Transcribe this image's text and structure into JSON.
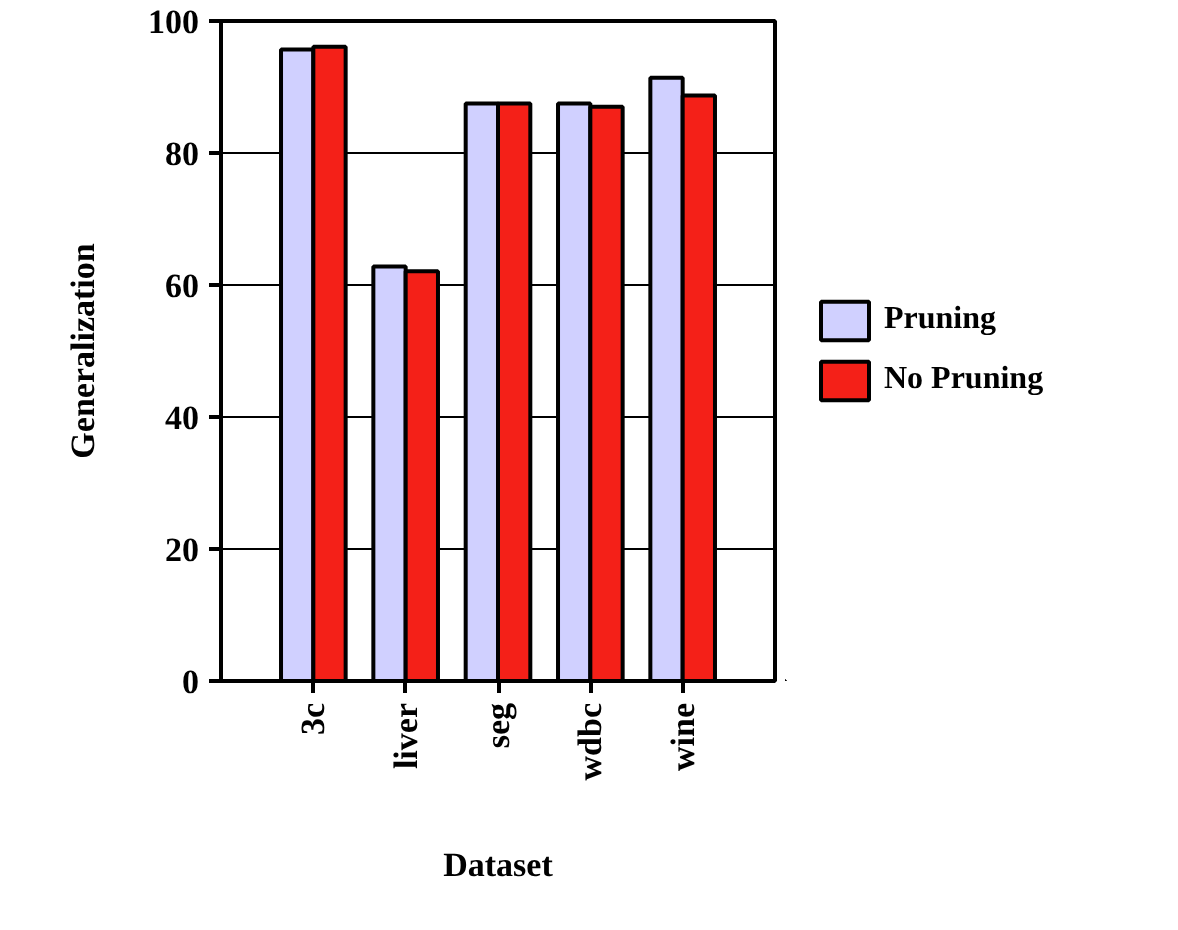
{
  "chart_data": {
    "type": "bar",
    "xlabel": "Dataset",
    "ylabel": "Generalization",
    "categories": [
      "3c",
      "liver",
      "seg",
      "wdbc",
      "wine"
    ],
    "series": [
      {
        "name": "Pruning",
        "color": "#d0d0ff",
        "values": [
          95.7,
          62.8,
          87.5,
          87.5,
          91.4
        ]
      },
      {
        "name": "No Pruning",
        "color": "#f42018",
        "values": [
          96.1,
          62.1,
          87.5,
          87.0,
          88.7
        ]
      }
    ],
    "ylim": [
      0,
      100
    ],
    "yticks": [
      0,
      20,
      40,
      60,
      80,
      100
    ],
    "grid": "y",
    "legend": "right"
  }
}
